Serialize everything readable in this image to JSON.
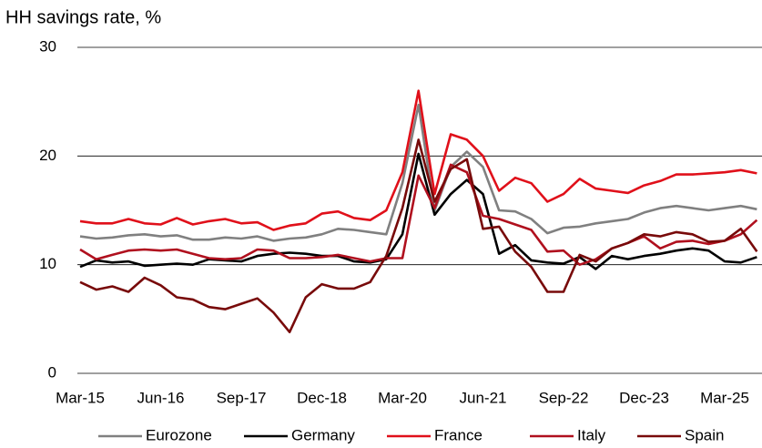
{
  "chart_data": {
    "type": "line",
    "title": "HH savings rate, %",
    "categories": [
      "Mar-15",
      null,
      null,
      null,
      null,
      "Jun-16",
      null,
      null,
      null,
      null,
      "Sep-17",
      null,
      null,
      null,
      null,
      "Dec-18",
      null,
      null,
      null,
      null,
      "Mar-20",
      null,
      null,
      null,
      null,
      "Jun-21",
      null,
      null,
      null,
      null,
      "Sep-22",
      null,
      null,
      null,
      null,
      "Dec-23",
      null,
      null,
      null,
      null,
      "Mar-25",
      null,
      null
    ],
    "series": [
      {
        "name": "Eurozone",
        "color": "#808080",
        "values": [
          12.6,
          12.4,
          12.5,
          12.7,
          12.8,
          12.6,
          12.7,
          12.3,
          12.3,
          12.5,
          12.4,
          12.6,
          12.2,
          12.4,
          12.5,
          12.8,
          13.3,
          13.2,
          13.0,
          12.8,
          17.5,
          24.7,
          15.0,
          19.0,
          20.4,
          19.0,
          15.0,
          14.9,
          14.2,
          12.9,
          13.4,
          13.5,
          13.8,
          14.0,
          14.2,
          14.8,
          15.2,
          15.4,
          15.2,
          15.0,
          15.2,
          15.4,
          15.1
        ]
      },
      {
        "name": "Germany",
        "color": "#000000",
        "values": [
          9.8,
          10.4,
          10.2,
          10.3,
          9.9,
          10.0,
          10.1,
          10.0,
          10.5,
          10.4,
          10.3,
          10.8,
          11.0,
          11.1,
          11.0,
          10.8,
          10.8,
          10.3,
          10.2,
          10.5,
          12.8,
          20.2,
          14.6,
          16.5,
          17.8,
          16.5,
          11.0,
          11.8,
          10.4,
          10.2,
          10.1,
          10.7,
          9.6,
          10.8,
          10.5,
          10.8,
          11.0,
          11.3,
          11.5,
          11.3,
          10.3,
          10.2,
          10.7
        ]
      },
      {
        "name": "France",
        "color": "#e0101a",
        "values": [
          14.0,
          13.8,
          13.8,
          14.2,
          13.8,
          13.7,
          14.3,
          13.7,
          14.0,
          14.2,
          13.8,
          13.9,
          13.2,
          13.6,
          13.8,
          14.7,
          14.9,
          14.3,
          14.1,
          15.0,
          18.5,
          26.0,
          16.5,
          22.0,
          21.5,
          20.0,
          16.8,
          18.0,
          17.5,
          15.8,
          16.5,
          17.9,
          17.0,
          16.8,
          16.6,
          17.3,
          17.7,
          18.3,
          18.3,
          18.4,
          18.5,
          18.7,
          18.4
        ]
      },
      {
        "name": "Italy",
        "color": "#b0101e",
        "values": [
          11.4,
          10.5,
          10.9,
          11.3,
          11.4,
          11.3,
          11.4,
          11.0,
          10.6,
          10.5,
          10.6,
          11.4,
          11.3,
          10.6,
          10.6,
          10.7,
          10.9,
          10.6,
          10.3,
          10.6,
          10.6,
          18.2,
          15.2,
          19.2,
          18.5,
          14.5,
          14.2,
          13.7,
          13.2,
          11.2,
          11.3,
          10.0,
          10.5,
          11.5,
          12.0,
          12.6,
          11.5,
          12.1,
          12.2,
          11.9,
          12.2,
          12.8,
          14.1
        ]
      },
      {
        "name": "Spain",
        "color": "#780a0a",
        "values": [
          8.4,
          7.7,
          8.0,
          7.5,
          8.8,
          8.1,
          7.0,
          6.8,
          6.1,
          5.9,
          6.4,
          6.9,
          5.6,
          3.8,
          7.0,
          8.2,
          7.8,
          7.8,
          8.4,
          10.8,
          15.2,
          21.5,
          15.8,
          18.8,
          19.7,
          13.3,
          13.5,
          11.2,
          9.8,
          7.5,
          7.5,
          10.9,
          10.3,
          11.5,
          12.0,
          12.8,
          12.6,
          13.0,
          12.8,
          12.1,
          12.2,
          13.3,
          11.2
        ]
      }
    ],
    "ylim": [
      0,
      30
    ],
    "yticks": [
      0,
      10,
      20,
      30
    ],
    "grid": true,
    "legend": "bottom"
  }
}
